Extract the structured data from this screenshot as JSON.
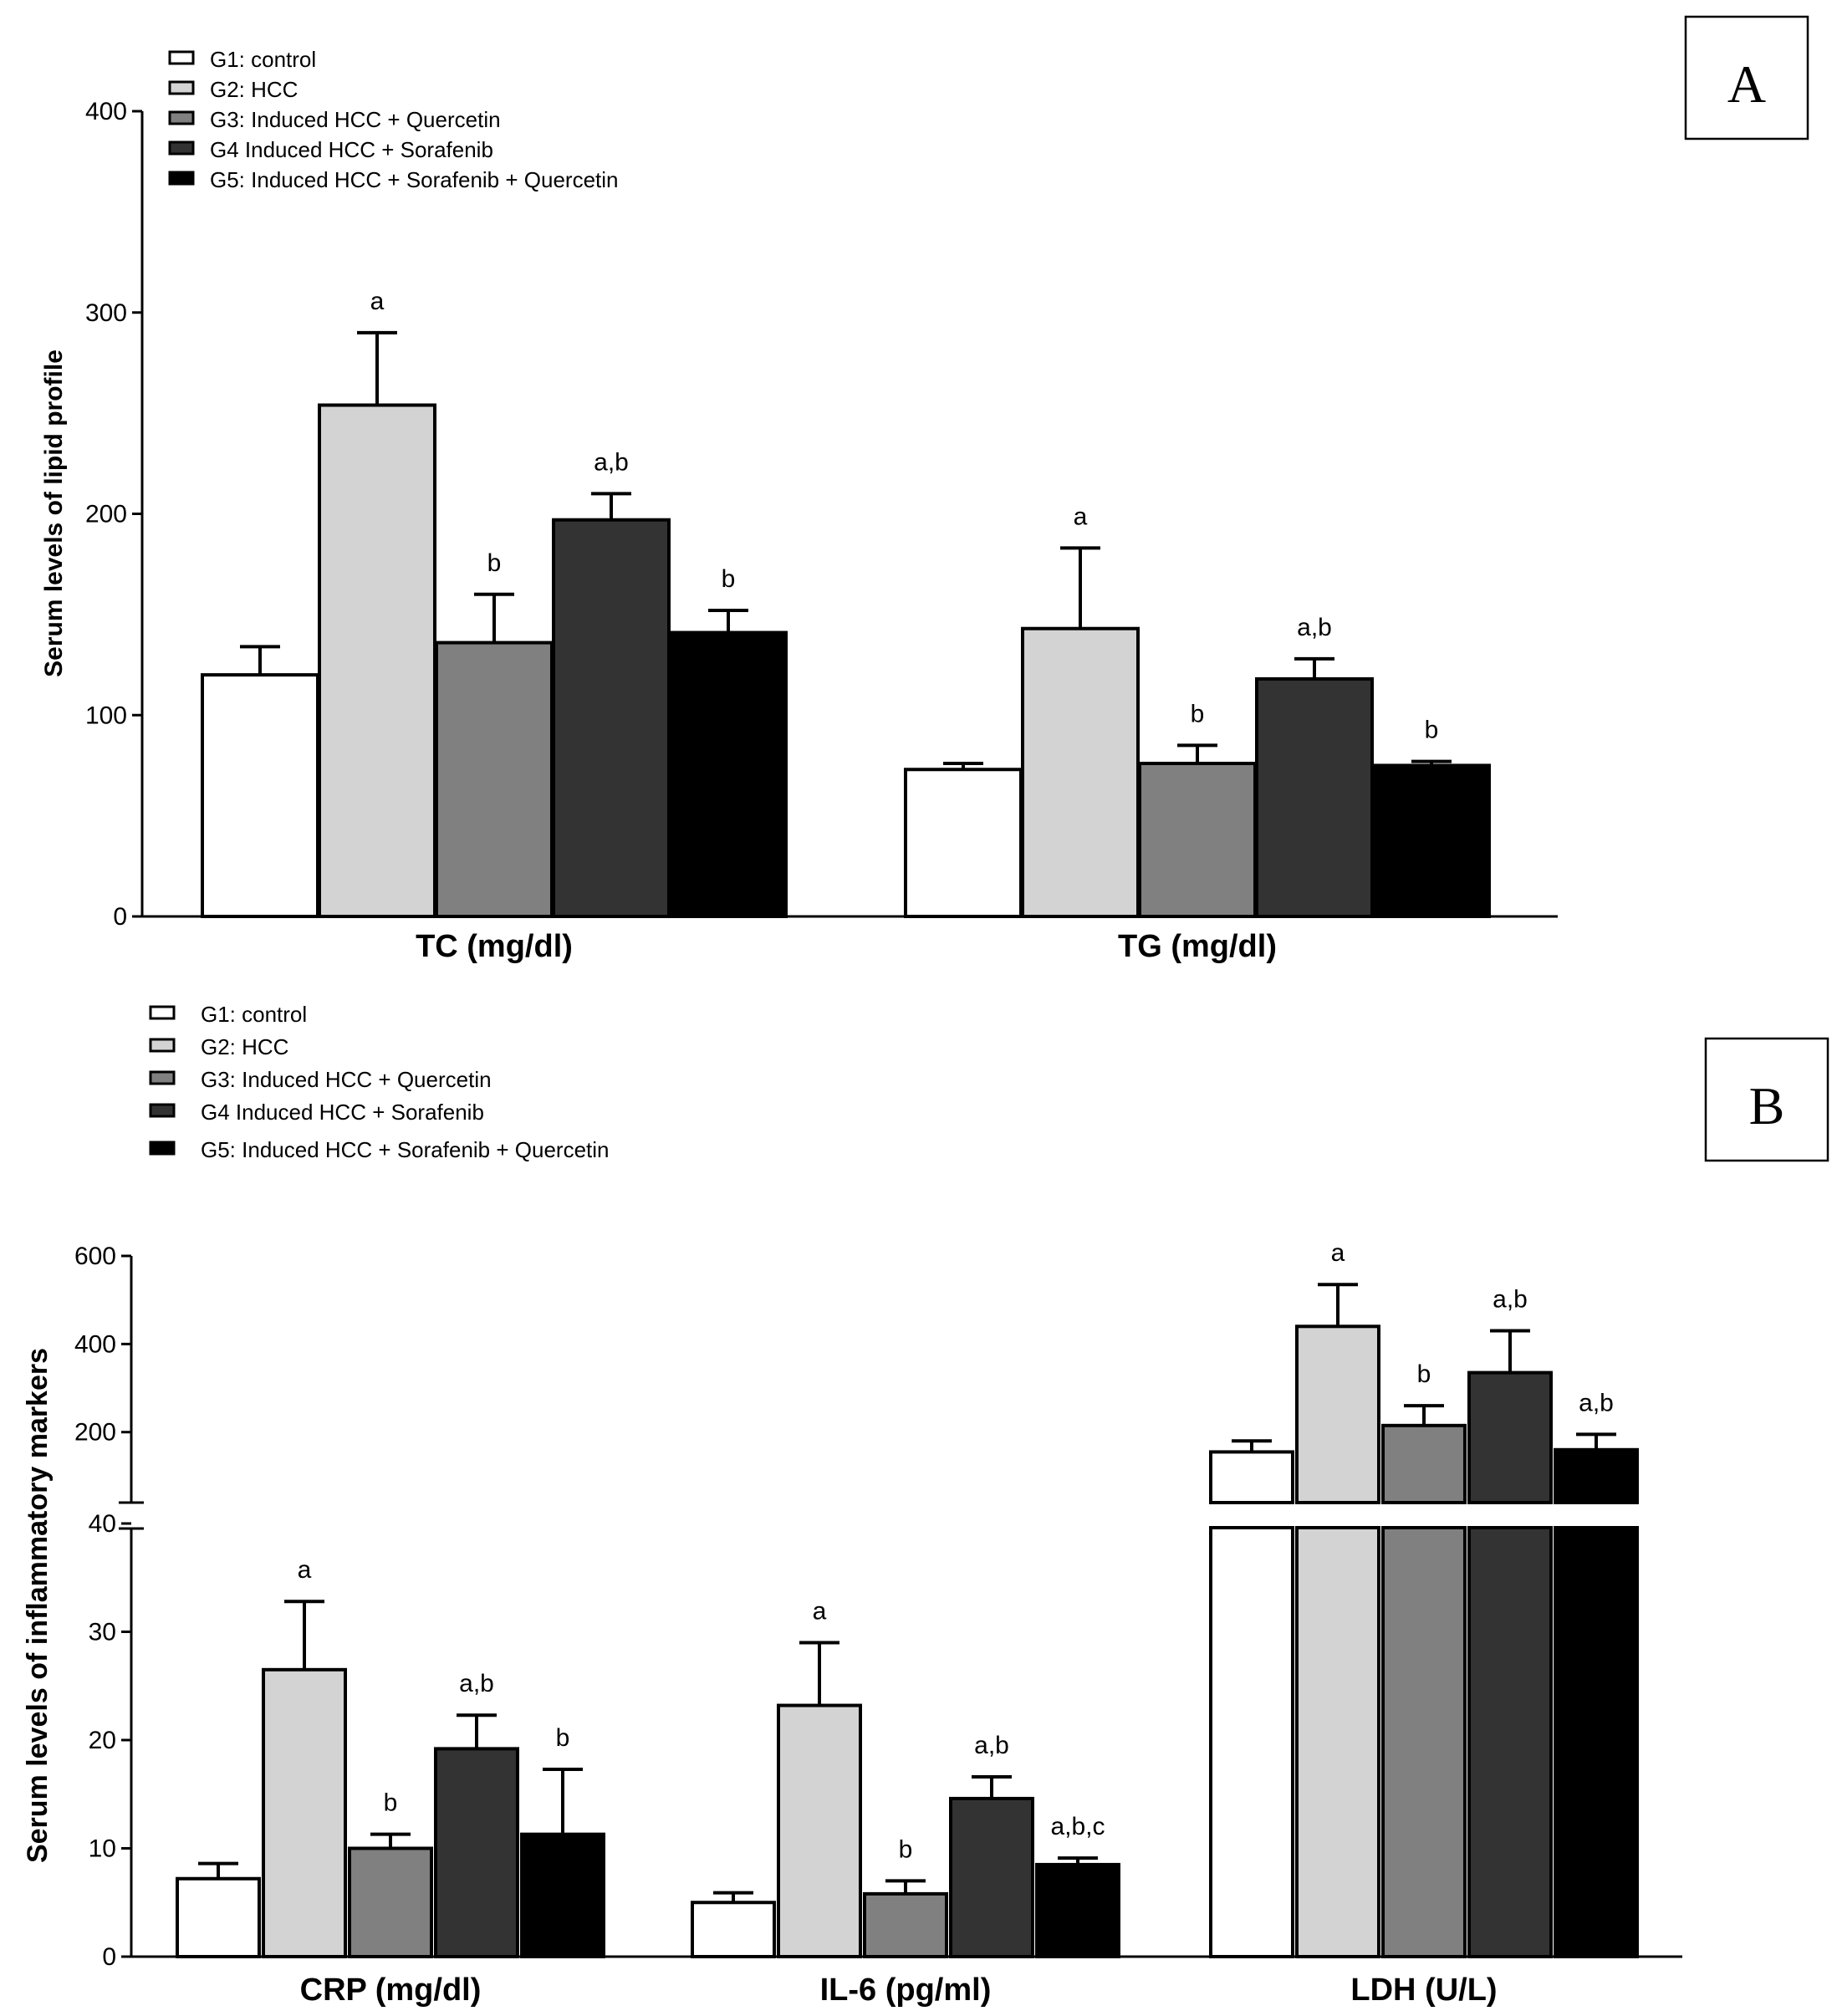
{
  "chart_data": [
    {
      "panel": "A",
      "type": "bar",
      "ylabel": "Serum levels of  lipid profile",
      "ylim": [
        0,
        400
      ],
      "yticks": [
        0,
        100,
        200,
        300,
        400
      ],
      "categories": [
        "TC (mg/dl)",
        "TG (mg/dl)"
      ],
      "legend": [
        "G1:  control",
        "G2: HCC",
        "G3: Induced HCC + Quercetin",
        "G4 Induced HCC + Sorafenib",
        "G5: Induced HCC + Sorafenib + Quercetin"
      ],
      "colors": [
        "#ffffff",
        "#d3d3d3",
        "#808080",
        "#333333",
        "#000000"
      ],
      "series": [
        {
          "name": "G1:  control",
          "values": [
            120,
            73
          ],
          "errors": [
            14,
            3
          ],
          "labels": [
            "",
            ""
          ]
        },
        {
          "name": "G2: HCC",
          "values": [
            254,
            143
          ],
          "errors": [
            36,
            40
          ],
          "labels": [
            "a",
            "a"
          ]
        },
        {
          "name": "G3: Induced HCC + Quercetin",
          "values": [
            136,
            76
          ],
          "errors": [
            24,
            9
          ],
          "labels": [
            "b",
            "b"
          ]
        },
        {
          "name": "G4 Induced HCC + Sorafenib",
          "values": [
            197,
            118
          ],
          "errors": [
            13,
            10
          ],
          "labels": [
            "a,b",
            "a,b"
          ]
        },
        {
          "name": "G5: Induced HCC + Sorafenib + Quercetin",
          "values": [
            141,
            75
          ],
          "errors": [
            11,
            2
          ],
          "labels": [
            "b",
            "b"
          ]
        }
      ]
    },
    {
      "panel": "B",
      "type": "bar",
      "ylabel": "Serum levels of  inflammatory markers",
      "axis_break": true,
      "ylim_lower": [
        0,
        40
      ],
      "ylim_upper": [
        40,
        600
      ],
      "yticks_lower": [
        0,
        10,
        20,
        30,
        40
      ],
      "yticks_upper": [
        200,
        400,
        600
      ],
      "categories": [
        "CRP (mg/dl)",
        "IL-6 (pg/ml)",
        "LDH (U/L)"
      ],
      "legend": [
        "G1:  control",
        "G2: HCC",
        "G3: Induced HCC + Quercetin",
        "G4 Induced HCC + Sorafenib",
        "G5: Induced HCC + Sorafenib + Quercetin"
      ],
      "colors": [
        "#ffffff",
        "#d3d3d3",
        "#808080",
        "#333333",
        "#000000"
      ],
      "series": [
        {
          "name": "G1:  control",
          "values": [
            7.2,
            5.0,
            155
          ],
          "errors": [
            1.4,
            0.9,
            25
          ],
          "labels": [
            "",
            "",
            ""
          ]
        },
        {
          "name": "G2: HCC",
          "values": [
            26.5,
            23.2,
            440
          ],
          "errors": [
            6.3,
            5.8,
            95
          ],
          "labels": [
            "a",
            "a",
            "a"
          ]
        },
        {
          "name": "G3: Induced HCC + Quercetin",
          "values": [
            10.0,
            5.8,
            215
          ],
          "errors": [
            1.3,
            1.2,
            45
          ],
          "labels": [
            "b",
            "b",
            "b"
          ]
        },
        {
          "name": "G4 Induced HCC + Sorafenib",
          "values": [
            19.2,
            14.6,
            335
          ],
          "errors": [
            3.1,
            2.0,
            95
          ],
          "labels": [
            "a,b",
            "a,b",
            "a,b"
          ]
        },
        {
          "name": "G5: Induced HCC + Sorafenib + Quercetin",
          "values": [
            11.3,
            8.5,
            160
          ],
          "errors": [
            6.0,
            0.6,
            35
          ],
          "labels": [
            "b",
            "a,b,c",
            "a,b"
          ]
        }
      ]
    }
  ],
  "panel_labels": [
    "A",
    "B"
  ]
}
